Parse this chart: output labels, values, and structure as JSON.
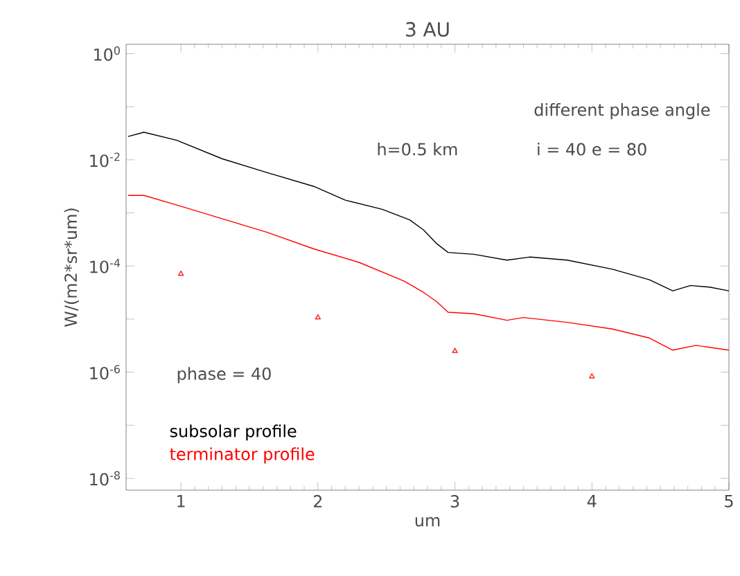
{
  "chart_data": {
    "type": "line",
    "title": "3 AU",
    "xlabel": "um",
    "ylabel": "W/(m2*sr*um)",
    "log": true,
    "legend": "bottom left",
    "xlim": [
      0.6,
      5
    ],
    "ylim": [
      6e-09,
      1.5
    ],
    "xticks": [
      1,
      2,
      3,
      4,
      5
    ],
    "yticks": [
      {
        "value": 1,
        "label": "10$^{0}$"
      },
      {
        "value": 0.1,
        "label": null
      },
      {
        "value": 0.01,
        "label": "10$^{-2}$"
      },
      {
        "value": 0.001,
        "label": null
      },
      {
        "value": 0.0001,
        "label": "10$^{-4}$"
      },
      {
        "value": 1e-05,
        "label": null
      },
      {
        "value": 1e-06,
        "label": "10$^{-6}$"
      },
      {
        "value": 1e-07,
        "label": null
      },
      {
        "value": 1e-08,
        "label": "10$^{-8}$"
      }
    ],
    "annotations": [
      "different phase angle",
      "h=0.5 km",
      "i = 40   e = 80",
      "phase = 40"
    ],
    "series": [
      {
        "name": "subsolar profile",
        "color": "#000000",
        "x": [
          0.615,
          0.73,
          0.97,
          1.3,
          1.63,
          1.97,
          2.2,
          2.47,
          2.67,
          2.77,
          2.87,
          2.95,
          3.14,
          3.38,
          3.55,
          3.82,
          4.15,
          4.42,
          4.59,
          4.72,
          4.86,
          5.0
        ],
        "values": [
          0.0275,
          0.0331,
          0.0234,
          0.0105,
          0.00575,
          0.00316,
          0.00174,
          0.00117,
          0.00074,
          0.00048,
          0.00026,
          0.00018,
          0.000166,
          0.000129,
          0.000148,
          0.000129,
          8.7e-05,
          5.5e-05,
          3.4e-05,
          4.3e-05,
          4e-05,
          3.4e-05
        ]
      },
      {
        "name": "terminator profile",
        "color": "#ff0000",
        "x": [
          0.615,
          0.73,
          0.97,
          1.3,
          1.63,
          1.97,
          2.3,
          2.63,
          2.77,
          2.87,
          2.95,
          3.14,
          3.38,
          3.5,
          3.82,
          4.15,
          4.42,
          4.59,
          4.76,
          5.0
        ],
        "values": [
          0.00214,
          0.00214,
          0.00141,
          0.00078,
          0.00043,
          0.00021,
          0.000117,
          5.2e-05,
          3.2e-05,
          2.1e-05,
          1.35e-05,
          1.26e-05,
          9.5e-06,
          1.07e-05,
          8.7e-06,
          6.5e-06,
          4.4e-06,
          2.6e-06,
          3.2e-06,
          2.6e-06
        ]
      },
      {
        "type": "scatter",
        "marker": "triangle",
        "color": "#ff0000",
        "x": [
          1,
          2,
          3,
          4
        ],
        "values": [
          7.1e-05,
          1.07e-05,
          2.5e-06,
          8.3e-07
        ]
      }
    ]
  }
}
